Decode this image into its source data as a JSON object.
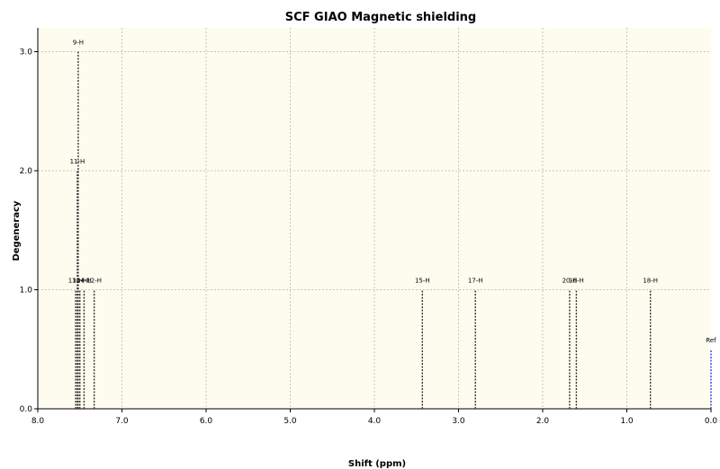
{
  "chart_data": {
    "type": "stick",
    "title": "SCF GIAO Magnetic shielding",
    "xlabel": "Shift (ppm)",
    "ylabel": "Degeneracy",
    "xlim": [
      8.0,
      0.0
    ],
    "ylim": [
      0.0,
      3.2
    ],
    "x_reversed": true,
    "grid": true,
    "xticks": [
      "8.0",
      "7.0",
      "6.0",
      "5.0",
      "4.0",
      "3.0",
      "2.0",
      "1.0",
      "0.0"
    ],
    "yticks": [
      "0.0",
      "1.0",
      "2.0",
      "3.0"
    ],
    "peaks": [
      {
        "label": "9-H",
        "x": 7.52,
        "y": 3.0
      },
      {
        "label": "11-H",
        "x": 7.53,
        "y": 2.0
      },
      {
        "label": "13-H",
        "x": 7.55,
        "y": 1.0
      },
      {
        "label": "10-H",
        "x": 7.5,
        "y": 1.0
      },
      {
        "label": "14-H",
        "x": 7.45,
        "y": 1.0
      },
      {
        "label": "12-H",
        "x": 7.33,
        "y": 1.0
      },
      {
        "label": "15-H",
        "x": 3.43,
        "y": 1.0
      },
      {
        "label": "17-H",
        "x": 2.8,
        "y": 1.0
      },
      {
        "label": "20-H",
        "x": 1.68,
        "y": 1.0
      },
      {
        "label": "16-H",
        "x": 1.6,
        "y": 1.0
      },
      {
        "label": "18-H",
        "x": 0.72,
        "y": 1.0
      },
      {
        "label": "Ref",
        "x": 0.0,
        "y": 0.5,
        "color": "#3a3adc"
      }
    ],
    "colors": {
      "background": "#fdfcef",
      "grid": "#c8c8b4",
      "stick": "#333333",
      "ref_stick": "#3a3adc"
    }
  }
}
